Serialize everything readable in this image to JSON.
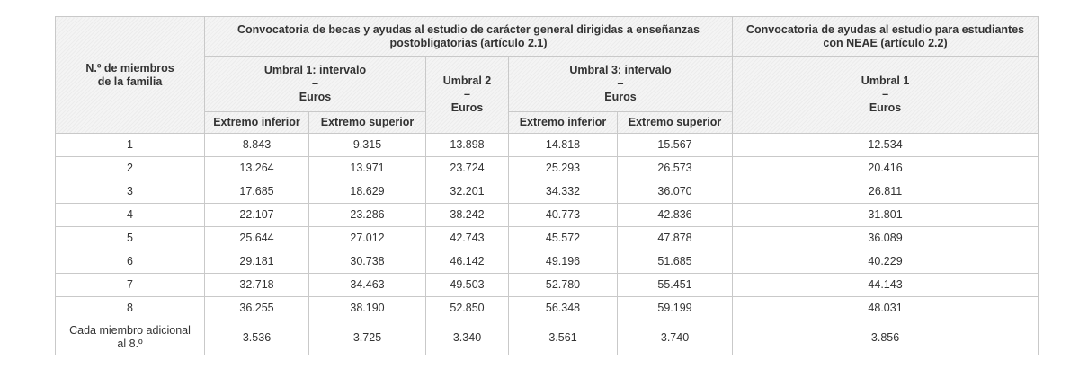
{
  "table": {
    "corner": [
      "N.º de miembros",
      "de la familia"
    ],
    "group_general": "Convocatoria de becas y ayudas al estudio de carácter general dirigidas a enseñanzas postobligatorias (artículo 2.1)",
    "group_neae": "Convocatoria de ayudas al estudio para estudiantes con NEAE (artículo 2.2)",
    "umbral1": [
      "Umbral 1: intervalo",
      "–",
      "Euros"
    ],
    "umbral2": [
      "Umbral 2",
      "–",
      "Euros"
    ],
    "umbral3": [
      "Umbral 3: intervalo",
      "–",
      "Euros"
    ],
    "umbral_neae": [
      "Umbral 1",
      "–",
      "Euros"
    ],
    "extremo_inferior": "Extremo inferior",
    "extremo_superior": "Extremo superior",
    "rows": [
      {
        "label": "1",
        "u1_inf": "8.843",
        "u1_sup": "9.315",
        "u2": "13.898",
        "u3_inf": "14.818",
        "u3_sup": "15.567",
        "neae": "12.534"
      },
      {
        "label": "2",
        "u1_inf": "13.264",
        "u1_sup": "13.971",
        "u2": "23.724",
        "u3_inf": "25.293",
        "u3_sup": "26.573",
        "neae": "20.416"
      },
      {
        "label": "3",
        "u1_inf": "17.685",
        "u1_sup": "18.629",
        "u2": "32.201",
        "u3_inf": "34.332",
        "u3_sup": "36.070",
        "neae": "26.811"
      },
      {
        "label": "4",
        "u1_inf": "22.107",
        "u1_sup": "23.286",
        "u2": "38.242",
        "u3_inf": "40.773",
        "u3_sup": "42.836",
        "neae": "31.801"
      },
      {
        "label": "5",
        "u1_inf": "25.644",
        "u1_sup": "27.012",
        "u2": "42.743",
        "u3_inf": "45.572",
        "u3_sup": "47.878",
        "neae": "36.089"
      },
      {
        "label": "6",
        "u1_inf": "29.181",
        "u1_sup": "30.738",
        "u2": "46.142",
        "u3_inf": "49.196",
        "u3_sup": "51.685",
        "neae": "40.229"
      },
      {
        "label": "7",
        "u1_inf": "32.718",
        "u1_sup": "34.463",
        "u2": "49.503",
        "u3_inf": "52.780",
        "u3_sup": "55.451",
        "neae": "44.143"
      },
      {
        "label": "8",
        "u1_inf": "36.255",
        "u1_sup": "38.190",
        "u2": "52.850",
        "u3_inf": "56.348",
        "u3_sup": "59.199",
        "neae": "48.031"
      }
    ],
    "extra_row": {
      "label": [
        "Cada miembro adicional",
        "al 8.º"
      ],
      "u1_inf": "3.536",
      "u1_sup": "3.725",
      "u2": "3.340",
      "u3_inf": "3.561",
      "u3_sup": "3.740",
      "neae": "3.856"
    }
  }
}
